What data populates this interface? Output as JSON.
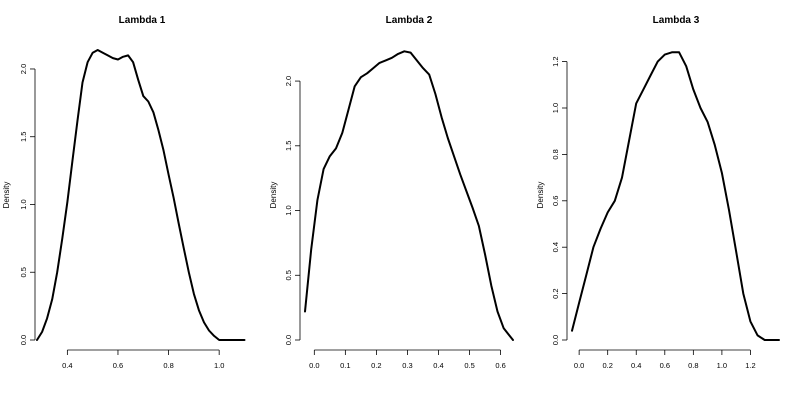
{
  "chart_data": [
    {
      "type": "line",
      "title": "Lambda 1",
      "ylabel": "Density",
      "xlabel": "",
      "xlim": [
        0.28,
        1.11
      ],
      "ylim": [
        0,
        2.14
      ],
      "xticks": [
        "0.4",
        "0.6",
        "0.8",
        "1.0"
      ],
      "yticks": [
        "0.0",
        "0.5",
        "1.0",
        "1.5",
        "2.0"
      ],
      "series": [
        {
          "x": [
            0.28,
            0.3,
            0.32,
            0.34,
            0.36,
            0.38,
            0.4,
            0.42,
            0.44,
            0.46,
            0.48,
            0.5,
            0.52,
            0.54,
            0.56,
            0.58,
            0.6,
            0.62,
            0.64,
            0.66,
            0.68,
            0.7,
            0.72,
            0.74,
            0.76,
            0.78,
            0.8,
            0.82,
            0.84,
            0.86,
            0.88,
            0.9,
            0.92,
            0.94,
            0.96,
            0.98,
            1.0,
            1.02,
            1.04,
            1.06,
            1.08,
            1.1
          ],
          "y": [
            0.0,
            0.06,
            0.16,
            0.3,
            0.5,
            0.75,
            1.02,
            1.32,
            1.62,
            1.9,
            2.05,
            2.12,
            2.14,
            2.12,
            2.1,
            2.08,
            2.07,
            2.09,
            2.1,
            2.05,
            1.92,
            1.8,
            1.76,
            1.68,
            1.55,
            1.4,
            1.22,
            1.05,
            0.86,
            0.68,
            0.5,
            0.34,
            0.22,
            0.13,
            0.07,
            0.03,
            0.0,
            0.0,
            0.0,
            0.0,
            0.0,
            0.0
          ]
        }
      ]
    },
    {
      "type": "line",
      "title": "Lambda 2",
      "ylabel": "Density",
      "xlabel": "",
      "xlim": [
        -0.03,
        0.64
      ],
      "ylim": [
        0,
        2.24
      ],
      "xticks": [
        "0.0",
        "0.1",
        "0.2",
        "0.3",
        "0.4",
        "0.5",
        "0.6"
      ],
      "yticks": [
        "0.0",
        "0.5",
        "1.0",
        "1.5",
        "2.0"
      ],
      "series": [
        {
          "x": [
            -0.03,
            -0.01,
            0.01,
            0.03,
            0.05,
            0.07,
            0.09,
            0.11,
            0.13,
            0.15,
            0.17,
            0.19,
            0.21,
            0.23,
            0.25,
            0.27,
            0.29,
            0.31,
            0.33,
            0.35,
            0.37,
            0.39,
            0.41,
            0.43,
            0.45,
            0.47,
            0.49,
            0.51,
            0.53,
            0.55,
            0.57,
            0.59,
            0.61,
            0.63,
            0.64
          ],
          "y": [
            0.22,
            0.7,
            1.08,
            1.32,
            1.42,
            1.48,
            1.6,
            1.78,
            1.96,
            2.03,
            2.06,
            2.1,
            2.14,
            2.16,
            2.18,
            2.21,
            2.23,
            2.22,
            2.16,
            2.1,
            2.05,
            1.9,
            1.72,
            1.56,
            1.42,
            1.28,
            1.15,
            1.02,
            0.88,
            0.66,
            0.42,
            0.22,
            0.09,
            0.03,
            0.0
          ]
        }
      ]
    },
    {
      "type": "line",
      "title": "Lambda 3",
      "ylabel": "Density",
      "xlabel": "",
      "xlim": [
        -0.05,
        1.4
      ],
      "ylim": [
        0,
        1.25
      ],
      "xticks": [
        "0.0",
        "0.2",
        "0.4",
        "0.6",
        "0.8",
        "1.0",
        "1.2"
      ],
      "yticks": [
        "0.0",
        "0.2",
        "0.4",
        "0.6",
        "0.8",
        "1.0",
        "1.2"
      ],
      "series": [
        {
          "x": [
            -0.05,
            0.0,
            0.05,
            0.1,
            0.15,
            0.2,
            0.25,
            0.3,
            0.35,
            0.4,
            0.45,
            0.5,
            0.55,
            0.6,
            0.65,
            0.7,
            0.75,
            0.8,
            0.85,
            0.9,
            0.95,
            1.0,
            1.05,
            1.1,
            1.15,
            1.2,
            1.25,
            1.3,
            1.35,
            1.4
          ],
          "y": [
            0.04,
            0.16,
            0.28,
            0.4,
            0.48,
            0.55,
            0.6,
            0.7,
            0.86,
            1.02,
            1.08,
            1.14,
            1.2,
            1.23,
            1.24,
            1.24,
            1.18,
            1.08,
            1.0,
            0.94,
            0.84,
            0.72,
            0.56,
            0.38,
            0.2,
            0.08,
            0.02,
            0.0,
            0.0,
            0.0
          ]
        }
      ]
    }
  ]
}
